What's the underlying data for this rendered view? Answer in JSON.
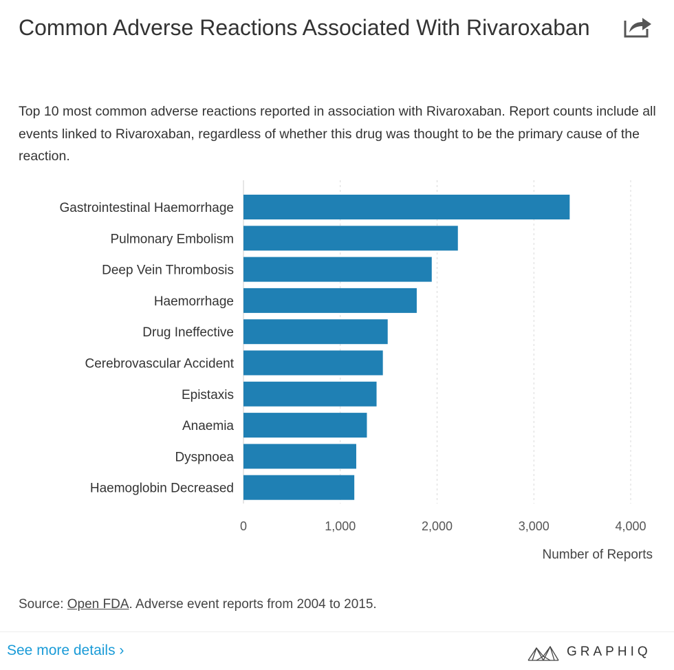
{
  "header": {
    "title": "Common Adverse Reactions Associated With Rivaroxaban",
    "subtitle": "Top 10 most common adverse reactions reported in association with Rivaroxaban. Report counts include all events linked to Rivaroxaban, regardless of whether this drug was thought to be the primary cause of the reaction.",
    "share_icon": "share-icon"
  },
  "chart_data": {
    "type": "bar",
    "orientation": "horizontal",
    "title": "",
    "xlabel": "Number of Reports",
    "ylabel": "",
    "categories": [
      "Gastrointestinal Haemorrhage",
      "Pulmonary Embolism",
      "Deep Vein Thrombosis",
      "Haemorrhage",
      "Drug Ineffective",
      "Cerebrovascular Accident",
      "Epistaxis",
      "Anaemia",
      "Dyspnoea",
      "Haemoglobin Decreased"
    ],
    "values": [
      3370,
      2215,
      1945,
      1790,
      1490,
      1440,
      1375,
      1275,
      1165,
      1145
    ],
    "xlim": [
      0,
      4000
    ],
    "xticks": [
      0,
      1000,
      2000,
      3000,
      4000
    ],
    "xtick_labels": [
      "0",
      "1,000",
      "2,000",
      "3,000",
      "4,000"
    ],
    "bar_color": "#1f80b4",
    "grid": "vertical dashed",
    "legend": "none"
  },
  "footer": {
    "source_prefix": "Source: ",
    "source_link": "Open FDA",
    "source_suffix": ". Adverse event reports from 2004 to 2015.",
    "see_more": "See more details ›",
    "brand": "GRAPHIQ"
  }
}
